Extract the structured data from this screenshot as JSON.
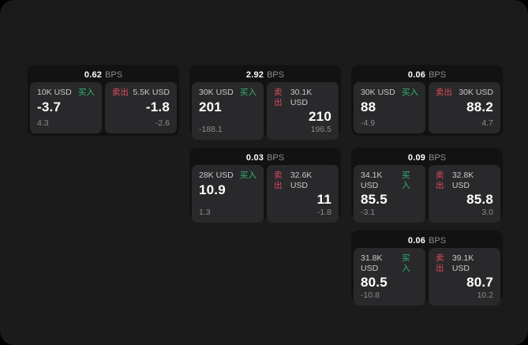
{
  "labels": {
    "bps_unit": "BPS",
    "buy": "买入",
    "sell": "卖出"
  },
  "colors": {
    "backdrop": "#000000",
    "surface": "#1b1b1c",
    "card": "#121213",
    "panel": "#29292b",
    "buy_green": "#31b473",
    "sell_red": "#dc4b5d",
    "text_primary": "#ffffff",
    "text_secondary": "#c9c9ca",
    "text_muted": "#8b8b8c"
  },
  "cards": [
    {
      "bps": "0.62",
      "buy": {
        "amount": "10K USD",
        "price": "-3.7",
        "delta": "4.3"
      },
      "sell": {
        "amount": "5.5K USD",
        "price": "-1.8",
        "delta": "-2.6"
      }
    },
    {
      "bps": "2.92",
      "buy": {
        "amount": "30K USD",
        "price": "201",
        "delta": "-188.1"
      },
      "sell": {
        "amount": "30.1K USD",
        "price": "210",
        "delta": "196.5"
      }
    },
    {
      "bps": "0.06",
      "buy": {
        "amount": "30K USD",
        "price": "88",
        "delta": "-4.9"
      },
      "sell": {
        "amount": "30K USD",
        "price": "88.2",
        "delta": "4.7"
      }
    },
    {
      "bps": "0.03",
      "buy": {
        "amount": "28K USD",
        "price": "10.9",
        "delta": "1.3"
      },
      "sell": {
        "amount": "32.6K USD",
        "price": "11",
        "delta": "-1.8"
      }
    },
    {
      "bps": "0.09",
      "buy": {
        "amount": "34.1K USD",
        "price": "85.5",
        "delta": "-3.1"
      },
      "sell": {
        "amount": "32.8K USD",
        "price": "85.8",
        "delta": "3.0"
      }
    },
    {
      "bps": "0.06",
      "buy": {
        "amount": "31.8K USD",
        "price": "80.5",
        "delta": "-10.8"
      },
      "sell": {
        "amount": "39.1K USD",
        "price": "80.7",
        "delta": "10.2"
      }
    }
  ]
}
